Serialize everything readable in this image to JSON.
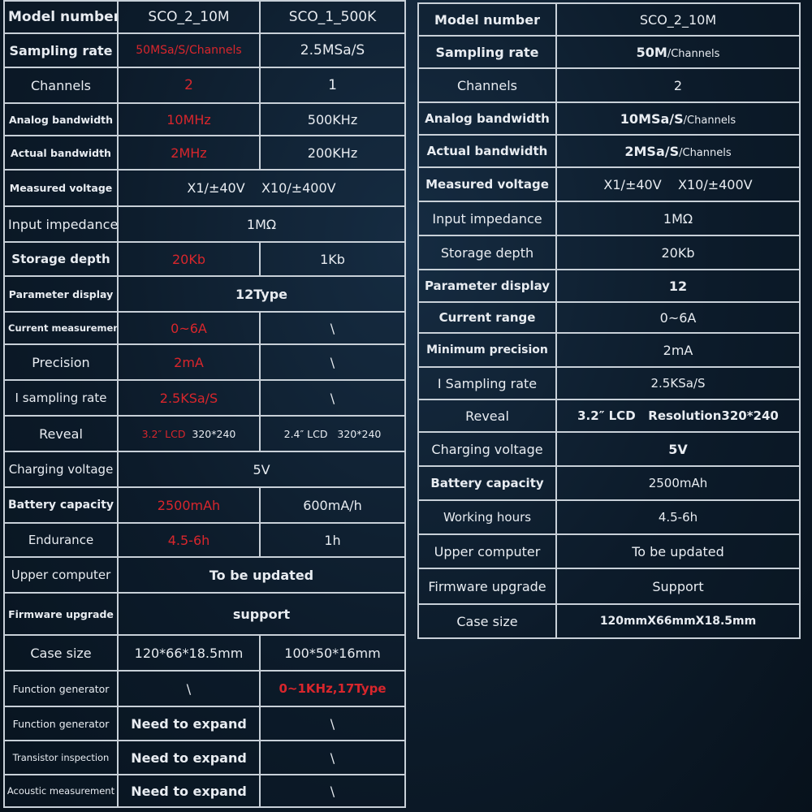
{
  "left": {
    "rows": [
      {
        "label": "Model number",
        "v1": "SCO_2_10M",
        "v2": "SCO_1_500K"
      },
      {
        "label": "Sampling rate",
        "v1": "50MSa/S/Channels",
        "v2": "2.5MSa/S"
      },
      {
        "label": "Channels",
        "v1": "2",
        "v2": "1"
      },
      {
        "label": "Analog bandwidth",
        "v1": "10MHz",
        "v2": "500KHz"
      },
      {
        "label": "Actual bandwidth",
        "v1": "2MHz",
        "v2": "200KHz"
      },
      {
        "label": "Measured voltage",
        "v": "X1/±40V    X10/±400V"
      },
      {
        "label": "Input impedance",
        "v": "1MΩ"
      },
      {
        "label": "Storage depth",
        "v1": "20Kb",
        "v2": "1Kb"
      },
      {
        "label": "Parameter display",
        "v": "12Type"
      },
      {
        "label": "Current measurement",
        "v1": "0~6A",
        "v2": "\\"
      },
      {
        "label": "Precision",
        "v1": "2mA",
        "v2": "\\"
      },
      {
        "label": "I sampling rate",
        "v1": "2.5KSa/S",
        "v2": "\\"
      },
      {
        "label": "Reveal",
        "v1a": "3.2″ LCD",
        "v1b": "320*240",
        "v2": "2.4″ LCD   320*240"
      },
      {
        "label": "Charging voltage",
        "v": "5V"
      },
      {
        "label": "Battery capacity",
        "v1": "2500mAh",
        "v2": "600mA/h"
      },
      {
        "label": "Endurance",
        "v1": "4.5-6h",
        "v2": "1h"
      },
      {
        "label": "Upper computer",
        "v": "To be updated"
      },
      {
        "label": "Firmware upgrade",
        "v": "support"
      },
      {
        "label": "Case size",
        "v1": "120*66*18.5mm",
        "v2": "100*50*16mm"
      },
      {
        "label": "Function generator",
        "v1": "\\",
        "v2": "0~1KHz,17Type"
      },
      {
        "label": "Function generator",
        "v1": "Need to expand",
        "v2": "\\"
      },
      {
        "label": "Transistor inspection",
        "v1": "Need to expand",
        "v2": "\\"
      },
      {
        "label": "Acoustic measurement",
        "v1": "Need to expand",
        "v2": "\\"
      }
    ]
  },
  "right": {
    "rows": [
      {
        "label": "Model number",
        "value": "SCO_2_10M"
      },
      {
        "label": "Sampling rate",
        "value": "50M",
        "unit": "/Channels"
      },
      {
        "label": "Channels",
        "value": "2"
      },
      {
        "label": "Analog bandwidth",
        "value": "10MSa/S",
        "unit": "/Channels"
      },
      {
        "label": "Actual bandwidth",
        "value": "2MSa/S",
        "unit": "/Channels"
      },
      {
        "label": "Measured voltage",
        "value": "X1/±40V    X10/±400V"
      },
      {
        "label": "Input impedance",
        "value": "1MΩ"
      },
      {
        "label": "Storage depth",
        "value": "20Kb"
      },
      {
        "label": "Parameter display",
        "value": "12"
      },
      {
        "label": "Current range",
        "value": "0~6A"
      },
      {
        "label": "Minimum precision",
        "value": "2mA"
      },
      {
        "label": "I Sampling rate",
        "value": "2.5KSa/S"
      },
      {
        "label": "Reveal",
        "value": "3.2″ LCD   Resolution320*240"
      },
      {
        "label": "Charging voltage",
        "value": "5V"
      },
      {
        "label": "Battery capacity",
        "value": "2500mAh"
      },
      {
        "label": "Working hours",
        "value": "4.5-6h"
      },
      {
        "label": "Upper computer",
        "value": "To be updated"
      },
      {
        "label": "Firmware upgrade",
        "value": "Support"
      },
      {
        "label": "Case size",
        "value": "120mmX66mmX18.5mm"
      }
    ]
  }
}
